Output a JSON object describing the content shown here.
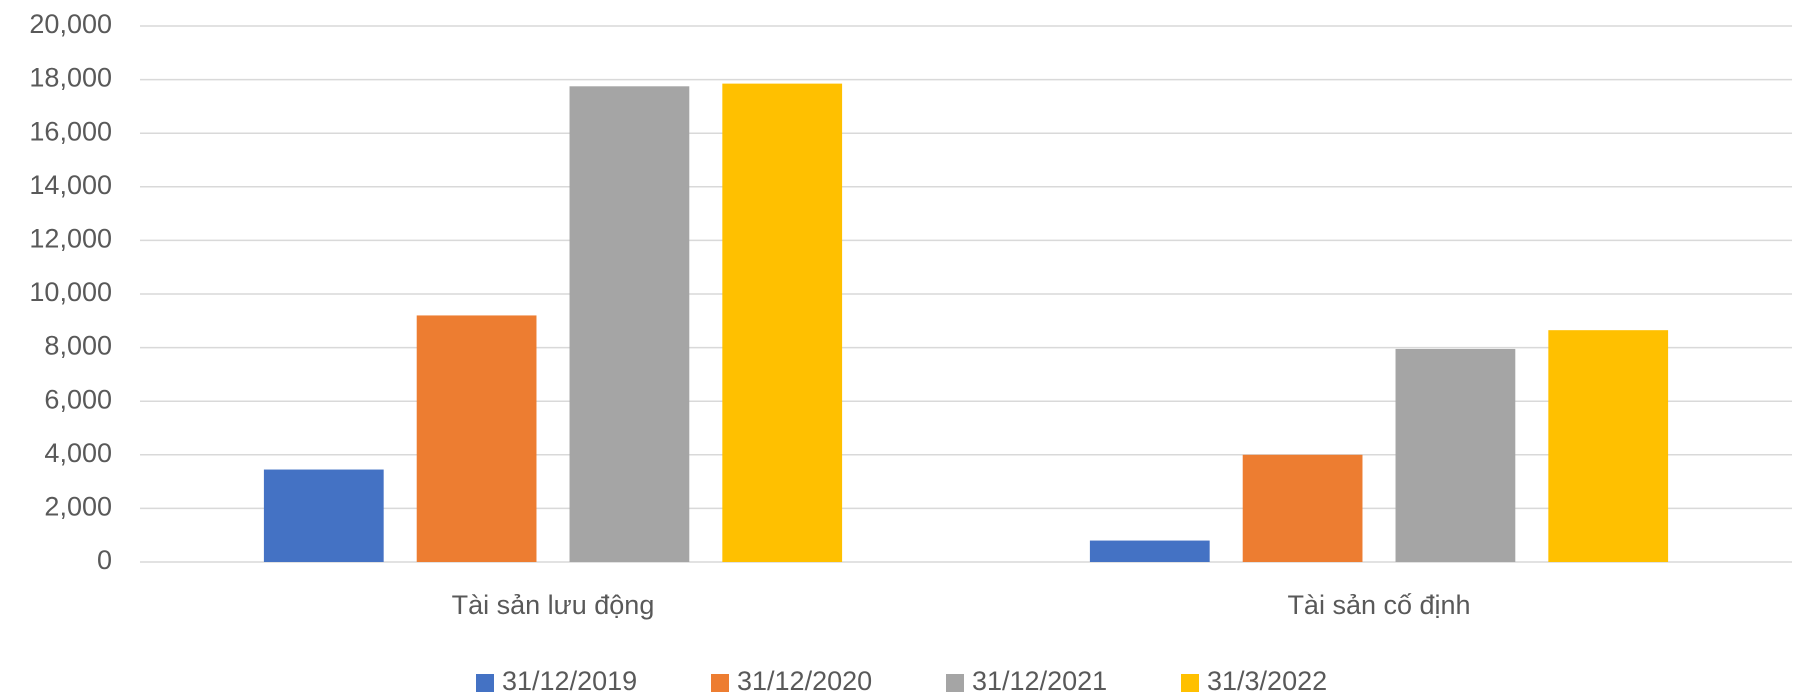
{
  "chart_data": {
    "type": "bar",
    "categories": [
      "Tài sản lưu động",
      "Tài sản cố định"
    ],
    "series": [
      {
        "name": "31/12/2019",
        "color": "#4472c4",
        "values": [
          3450,
          800
        ]
      },
      {
        "name": "31/12/2020",
        "color": "#ed7d31",
        "values": [
          9200,
          4000
        ]
      },
      {
        "name": "31/12/2021",
        "color": "#a5a5a5",
        "values": [
          17750,
          7950
        ]
      },
      {
        "name": "31/3/2022",
        "color": "#ffc000",
        "values": [
          17850,
          8650
        ]
      }
    ],
    "ylim": [
      0,
      20000
    ],
    "yticks": [
      0,
      {
        "value": 2000,
        "label": "2,000"
      },
      {
        "value": 4000,
        "label": "4,000"
      },
      {
        "value": 6000,
        "label": "6,000"
      },
      {
        "value": 8000,
        "label": "8,000"
      },
      {
        "value": 10000,
        "label": "10,000"
      },
      {
        "value": 12000,
        "label": "12,000"
      },
      {
        "value": 14000,
        "label": "14,000"
      },
      {
        "value": 16000,
        "label": "16,000"
      },
      {
        "value": 18000,
        "label": "18,000"
      },
      {
        "value": 20000,
        "label": "20,000"
      }
    ],
    "grid": true,
    "legend": "bottom"
  }
}
